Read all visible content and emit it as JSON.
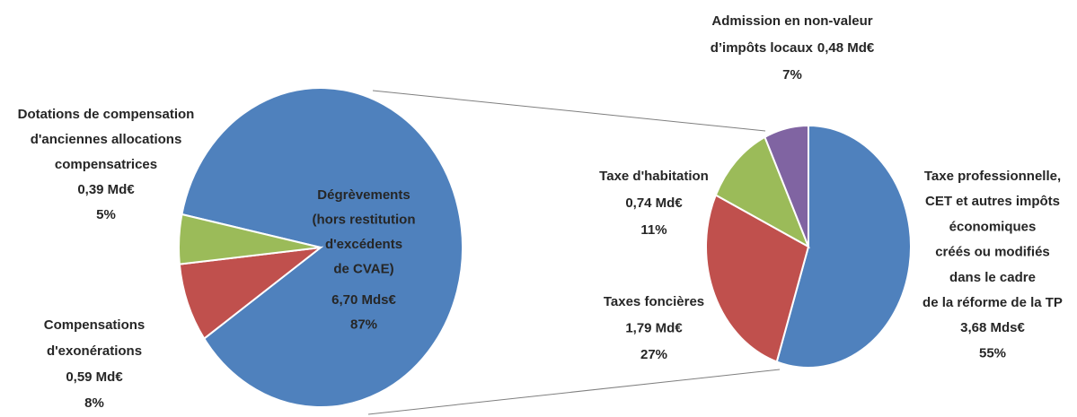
{
  "chart_data": [
    {
      "type": "pie",
      "categories": [
        [
          "Dégrèvements",
          "(hors restitution",
          "d'excédents",
          "de CVAE)"
        ],
        [
          "Compensations",
          "d'exonérations"
        ],
        [
          "Dotations de compensation",
          "d'anciennes allocations",
          "compensatrices"
        ]
      ],
      "amount_labels": [
        "6,70 Mds€",
        "0,59 Md€",
        "0,39 Md€"
      ],
      "values": [
        87,
        8,
        5
      ],
      "value_labels": [
        "87%",
        "8%",
        "5%"
      ],
      "colors": [
        "#4f81bd",
        "#c0504d",
        "#9bbb59"
      ]
    },
    {
      "type": "pie",
      "categories": [
        [
          "Taxe professionnelle,",
          "CET et autres impôts",
          "économiques",
          "créés ou modifiés",
          "dans le cadre",
          "de la réforme de la TP"
        ],
        [
          "Taxes foncières"
        ],
        [
          "Taxe d'habitation"
        ],
        [
          "Admission en non-valeur",
          "d’impôts locaux"
        ]
      ],
      "amount_labels": [
        "3,68 Mds€",
        "1,79 Md€",
        "0,74 Md€",
        "0,48 Md€"
      ],
      "values": [
        55,
        27,
        11,
        7
      ],
      "value_labels": [
        "55%",
        "27%",
        "11%",
        "7%"
      ],
      "colors": [
        "#4f81bd",
        "#c0504d",
        "#9bbb59",
        "#8064a2"
      ]
    }
  ]
}
